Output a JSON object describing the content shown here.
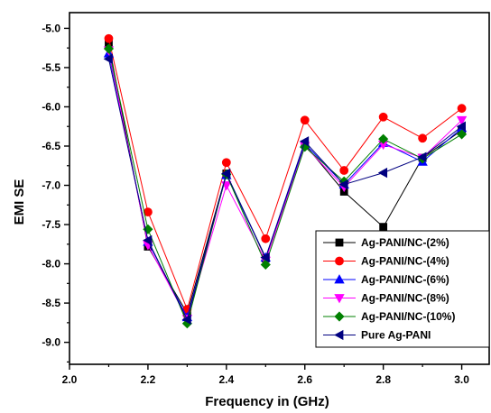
{
  "chart_data": {
    "type": "line",
    "title": "",
    "xlabel": "Frequency in (GHz)",
    "ylabel": "EMI SE",
    "xlim": [
      2.0,
      3.07
    ],
    "ylim": [
      -9.28,
      -4.8
    ],
    "x_ticks": [
      2.0,
      2.2,
      2.4,
      2.6,
      2.8,
      3.0
    ],
    "x_tick_labels": [
      "2.0",
      "2.2",
      "2.4",
      "2.6",
      "2.8",
      "3.0"
    ],
    "y_ticks": [
      -5.0,
      -5.5,
      -6.0,
      -6.5,
      -7.0,
      -7.5,
      -8.0,
      -8.5,
      -9.0
    ],
    "y_tick_labels": [
      "-5.0",
      "-5.5",
      "-6.0",
      "-6.5",
      "-7.0",
      "-7.5",
      "-8.0",
      "-8.5",
      "-9.0"
    ],
    "grid": false,
    "legend_position": "bottom-right",
    "x": [
      2.1,
      2.2,
      2.3,
      2.4,
      2.5,
      2.6,
      2.7,
      2.8,
      2.9,
      3.0
    ],
    "series": [
      {
        "name": "Ag-PANI/NC-(2%)",
        "color": "#000000",
        "marker": "square",
        "values": [
          -5.2,
          -7.78,
          -8.63,
          -6.85,
          -7.93,
          -6.48,
          -7.08,
          -7.53,
          -6.65,
          -6.3
        ]
      },
      {
        "name": "Ag-PANI/NC-(4%)",
        "color": "#ff0000",
        "marker": "circle",
        "values": [
          -5.13,
          -7.34,
          -8.58,
          -6.71,
          -7.68,
          -6.17,
          -6.81,
          -6.13,
          -6.4,
          -6.02
        ]
      },
      {
        "name": "Ag-PANI/NC-(6%)",
        "color": "#0000ff",
        "marker": "triangle-up",
        "values": [
          -5.32,
          -7.72,
          -8.68,
          -6.87,
          -7.92,
          -6.47,
          -6.99,
          -6.46,
          -6.7,
          -6.27
        ]
      },
      {
        "name": "Ag-PANI/NC-(8%)",
        "color": "#ff00ff",
        "marker": "triangle-down",
        "values": [
          -5.28,
          -7.76,
          -8.7,
          -7.0,
          -7.96,
          -6.5,
          -7.02,
          -6.48,
          -6.65,
          -6.17
        ]
      },
      {
        "name": "Ag-PANI/NC-(10%)",
        "color": "#008000",
        "marker": "diamond",
        "values": [
          -5.26,
          -7.56,
          -8.76,
          -6.86,
          -8.01,
          -6.51,
          -6.95,
          -6.41,
          -6.66,
          -6.35
        ]
      },
      {
        "name": "Pure Ag-PANI",
        "color": "#000080",
        "marker": "triangle-left",
        "values": [
          -5.39,
          -7.7,
          -8.71,
          -6.85,
          -7.92,
          -6.44,
          -6.99,
          -6.84,
          -6.64,
          -6.25
        ]
      }
    ]
  }
}
